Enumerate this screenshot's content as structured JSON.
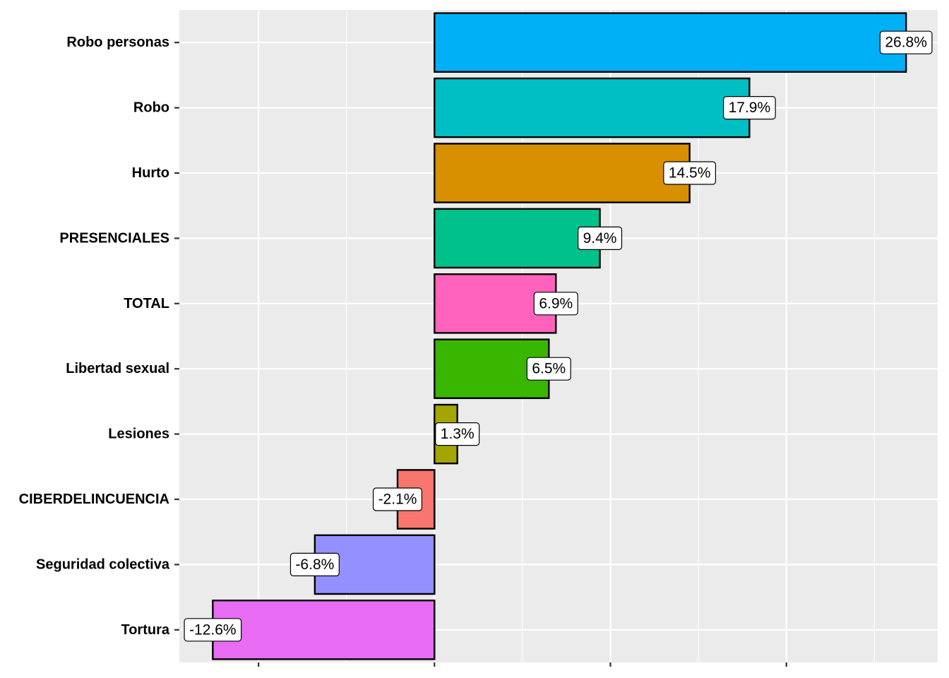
{
  "chart_data": {
    "type": "bar",
    "orientation": "horizontal",
    "title": "",
    "xlabel": "",
    "ylabel": "",
    "categories": [
      "Robo personas",
      "Robo",
      "Hurto",
      "PRESENCIALES",
      "TOTAL",
      "Libertad sexual",
      "Lesiones",
      "CIBERDELINCUENCIA",
      "Seguridad colectiva",
      "Tortura"
    ],
    "values": [
      26.8,
      17.9,
      14.5,
      9.4,
      6.9,
      6.5,
      1.3,
      -2.1,
      -6.8,
      -12.6
    ],
    "labels": [
      "26.8%",
      "17.9%",
      "14.5%",
      "9.4%",
      "6.9%",
      "6.5%",
      "1.3%",
      "-2.1%",
      "-6.8%",
      "-12.6%"
    ],
    "colors": [
      "#00B0F6",
      "#00BFC4",
      "#D89000",
      "#00C08B",
      "#FF62BC",
      "#39B600",
      "#A3A500",
      "#F8766D",
      "#9590FF",
      "#E76BF3"
    ],
    "xlim": [
      -14.5,
      28.6
    ],
    "x_ticks": [
      -10,
      0,
      10,
      20
    ],
    "x_tick_labels": [
      "",
      "",
      "",
      ""
    ],
    "grid": true,
    "legend": "none"
  }
}
